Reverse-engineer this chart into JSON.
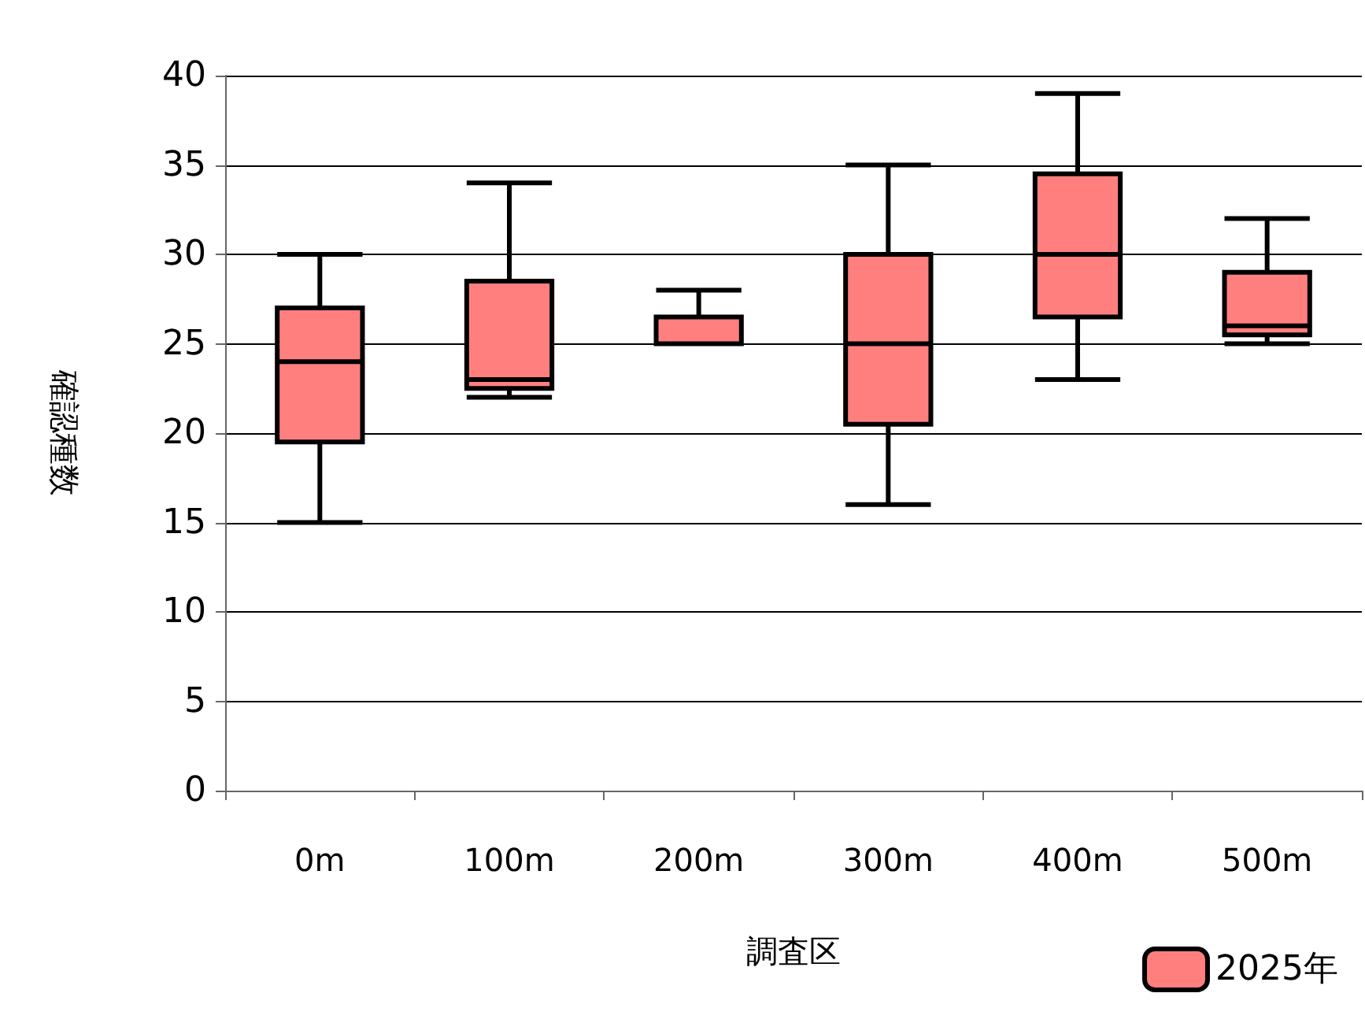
{
  "chart_data": {
    "type": "box",
    "xlabel": "調査区",
    "ylabel": "確認種数",
    "categories": [
      "0m",
      "100m",
      "200m",
      "300m",
      "400m",
      "500m"
    ],
    "series": [
      {
        "name": "2025年",
        "color": "#ff7f7f",
        "boxes": [
          {
            "low": 15,
            "q1": 19.5,
            "median": 24,
            "q3": 27,
            "high": 30
          },
          {
            "low": 22,
            "q1": 22.5,
            "median": 23,
            "q3": 28.5,
            "high": 34
          },
          {
            "low": 25,
            "q1": 25,
            "median": 25,
            "q3": 26.5,
            "high": 28
          },
          {
            "low": 16,
            "q1": 20.5,
            "median": 25,
            "q3": 30,
            "high": 35
          },
          {
            "low": 23,
            "q1": 26.5,
            "median": 30,
            "q3": 34.5,
            "high": 39
          },
          {
            "low": 25,
            "q1": 25.5,
            "median": 26,
            "q3": 29,
            "high": 32
          }
        ]
      }
    ],
    "ylim": [
      0,
      40
    ],
    "yticks": [
      0,
      5,
      10,
      15,
      20,
      25,
      30,
      35,
      40
    ],
    "grid": "y",
    "legend": "bottom right"
  }
}
